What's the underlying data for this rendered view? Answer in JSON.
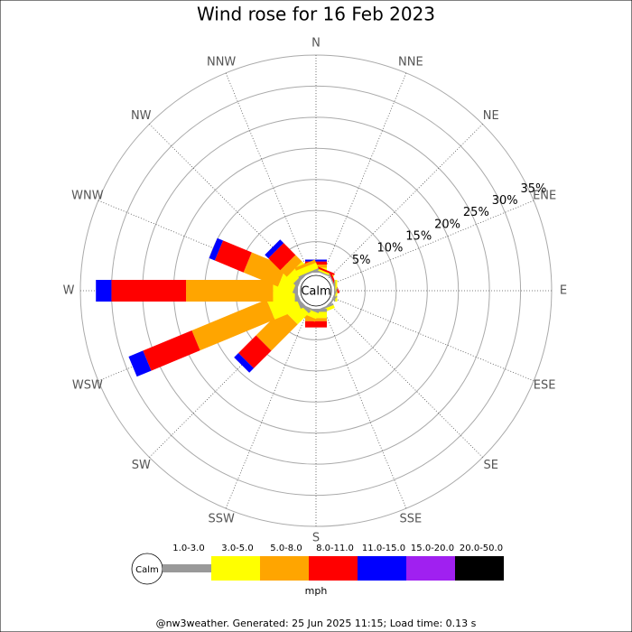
{
  "chart_data": {
    "type": "windrose",
    "title": "Wind rose for 16 Feb 2023",
    "center_label": "Calm",
    "categories": [
      "N",
      "NNE",
      "NE",
      "ENE",
      "E",
      "ESE",
      "SE",
      "SSE",
      "S",
      "SSW",
      "SW",
      "WSW",
      "W",
      "WNW",
      "NW",
      "NNW"
    ],
    "rlim": [
      0,
      35
    ],
    "rticks": [
      {
        "value": 5,
        "label": "5%"
      },
      {
        "value": 10,
        "label": "10%"
      },
      {
        "value": 15,
        "label": "15%"
      },
      {
        "value": 20,
        "label": "20%"
      },
      {
        "value": 25,
        "label": "25%"
      },
      {
        "value": 30,
        "label": "30%"
      },
      {
        "value": 35,
        "label": "35%"
      }
    ],
    "series": [
      {
        "name": "1.0-3.0",
        "color": "#999999",
        "values": [
          0.3,
          0.2,
          0,
          0.2,
          0.2,
          0.2,
          0.2,
          0.3,
          0.5,
          0.3,
          0.5,
          0.5,
          0.5,
          0.5,
          0.5,
          0.3
        ]
      },
      {
        "name": "3.0-5.0",
        "color": "#ffff00",
        "values": [
          0.5,
          0.3,
          0,
          0,
          0.3,
          0,
          0,
          0.5,
          1,
          1,
          2.5,
          4.5,
          3.5,
          2.5,
          1.5,
          1
        ]
      },
      {
        "name": "5.0-8.0",
        "color": "#ffa500",
        "values": [
          0.5,
          0,
          0,
          0,
          0,
          0,
          0,
          0,
          0.5,
          0.5,
          6,
          13,
          14,
          6,
          1.5,
          0.5
        ]
      },
      {
        "name": "8.0-11.0",
        "color": "#ff0000",
        "values": [
          0.5,
          0.3,
          0,
          0.3,
          0,
          0,
          0,
          0,
          1,
          0,
          4,
          8.5,
          12,
          5,
          2.7,
          0
        ]
      },
      {
        "name": "11.0-15.0",
        "color": "#0000ff",
        "values": [
          0.3,
          0,
          0,
          0,
          0,
          0,
          0,
          0,
          0,
          0,
          1,
          2.5,
          2.5,
          1,
          0.8,
          0
        ]
      },
      {
        "name": "15.0-20.0",
        "color": "#a020f0",
        "values": [
          0,
          0,
          0,
          0,
          0,
          0,
          0,
          0,
          0,
          0,
          0,
          0,
          0,
          0,
          0,
          0
        ]
      },
      {
        "name": "20.0-50.0",
        "color": "#000000",
        "values": [
          0,
          0,
          0,
          0,
          0,
          0,
          0,
          0,
          0,
          0,
          0,
          0,
          0,
          0,
          0,
          0
        ]
      }
    ],
    "legend_calm": "Calm",
    "legend_unit": "mph",
    "footer": "@nw3weather. Generated: 25 Jun 2025 11:15; Load time: 0.13 s"
  }
}
